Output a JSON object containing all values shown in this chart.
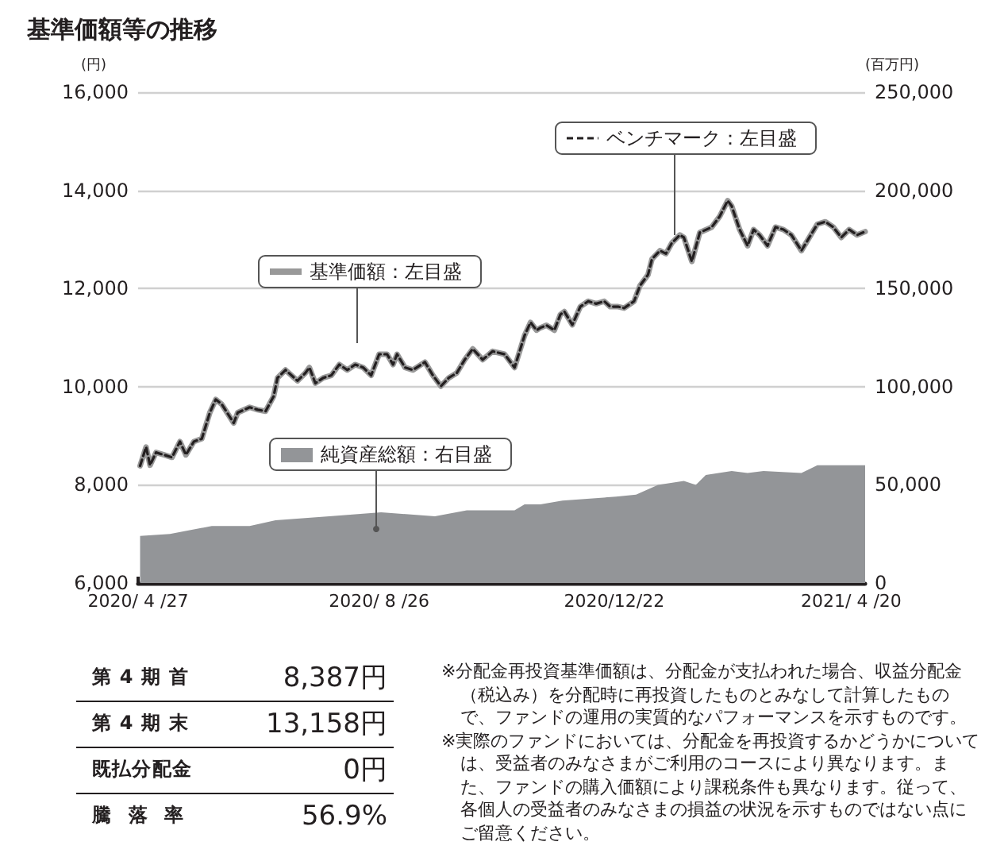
{
  "chart_data": [
    {
      "type": "line",
      "title": "基準価額等の推移",
      "ylabel": "(円)",
      "y2label": "(百万円)",
      "xlim": [
        "2020-04-27",
        "2021-04-27"
      ],
      "xticks": [
        {
          "value": "2020-04-27",
          "label": "2020/ 4 /27"
        },
        {
          "value": "2020-08-26",
          "label": "2020/ 8 /26"
        },
        {
          "value": "2020-12-22",
          "label": "2020/12/22"
        },
        {
          "value": "2021-04-20",
          "label": "2021/ 4 /20"
        }
      ],
      "ylim": [
        6000,
        16000
      ],
      "yticks": [
        {
          "value": 6000,
          "label": "6,000"
        },
        {
          "value": 8000,
          "label": "8,000"
        },
        {
          "value": 10000,
          "label": "10,000"
        },
        {
          "value": 12000,
          "label": "12,000"
        },
        {
          "value": 14000,
          "label": "14,000"
        },
        {
          "value": 16000,
          "label": "16,000"
        }
      ],
      "y2lim": [
        0,
        250000
      ],
      "y2ticks": [
        0,
        {
          "value": 50000,
          "label": "50,000"
        },
        {
          "value": 100000,
          "label": "100,000"
        },
        {
          "value": 150000,
          "label": "150,000"
        },
        {
          "value": 200000,
          "label": "200,000"
        },
        {
          "value": 250000,
          "label": "250,000"
        }
      ],
      "grid": "y",
      "legend": "top",
      "marker": "none",
      "series": [
        {
          "name": "純資産総額：右目盛",
          "type": "area",
          "axis": "y2",
          "color": "#939598",
          "x": [
            "2020-04-28",
            "2020-05-13",
            "2020-06-03",
            "2020-06-22",
            "2020-07-05",
            "2020-08-01",
            "2020-08-27",
            "2020-09-23",
            "2020-10-09",
            "2020-11-02",
            "2020-11-07",
            "2020-11-15",
            "2020-11-26",
            "2020-12-23",
            "2021-01-02",
            "2021-01-13",
            "2021-01-26",
            "2021-02-01",
            "2021-02-06",
            "2021-02-19",
            "2021-02-27",
            "2021-03-07",
            "2021-03-26",
            "2021-04-03",
            "2021-04-27"
          ],
          "values": [
            24000,
            25000,
            29000,
            29000,
            32000,
            34000,
            36000,
            34000,
            37000,
            37000,
            40000,
            40000,
            42000,
            44000,
            45000,
            50000,
            52000,
            50000,
            55000,
            57000,
            56000,
            57000,
            56000,
            60000,
            60000
          ]
        },
        {
          "name": "基準価額：左目盛",
          "type": "line",
          "color": "#999999",
          "line_style": "solid",
          "x": [
            "2020-04-28",
            "2020-05-01",
            "2020-05-03",
            "2020-05-06",
            "2020-05-10",
            "2020-05-14",
            "2020-05-18",
            "2020-05-21",
            "2020-05-25",
            "2020-05-29",
            "2020-06-02",
            "2020-06-05",
            "2020-06-08",
            "2020-06-14",
            "2020-06-16",
            "2020-06-22",
            "2020-06-26",
            "2020-06-30",
            "2020-07-04",
            "2020-07-06",
            "2020-07-10",
            "2020-07-16",
            "2020-07-20",
            "2020-07-22",
            "2020-07-25",
            "2020-07-29",
            "2020-08-02",
            "2020-08-06",
            "2020-08-10",
            "2020-08-14",
            "2020-08-18",
            "2020-08-22",
            "2020-08-26",
            "2020-08-30",
            "2020-09-02",
            "2020-09-04",
            "2020-09-08",
            "2020-09-12",
            "2020-09-18",
            "2020-09-22",
            "2020-09-26",
            "2020-09-30",
            "2020-10-04",
            "2020-10-08",
            "2020-10-12",
            "2020-10-17",
            "2020-10-22",
            "2020-10-28",
            "2020-11-02",
            "2020-11-07",
            "2020-11-10",
            "2020-11-13",
            "2020-11-15",
            "2020-11-18",
            "2020-11-22",
            "2020-11-25",
            "2020-11-27",
            "2020-12-01",
            "2020-12-05",
            "2020-12-09",
            "2020-12-13",
            "2020-12-17",
            "2020-12-20",
            "2020-12-24",
            "2020-12-27",
            "2021-01-01",
            "2021-01-04",
            "2021-01-08",
            "2021-01-10",
            "2021-01-14",
            "2021-01-17",
            "2021-01-20",
            "2021-01-24",
            "2021-01-26",
            "2021-01-30",
            "2021-02-03",
            "2021-02-09",
            "2021-02-13",
            "2021-02-17",
            "2021-02-19",
            "2021-02-23",
            "2021-02-27",
            "2021-03-02",
            "2021-03-05",
            "2021-03-09",
            "2021-03-13",
            "2021-03-17",
            "2021-03-21",
            "2021-03-26",
            "2021-03-30",
            "2021-04-03",
            "2021-04-07",
            "2021-04-11",
            "2021-04-15",
            "2021-04-19",
            "2021-04-23",
            "2021-04-27"
          ],
          "values": [
            8387,
            8770,
            8400,
            8660,
            8610,
            8560,
            8880,
            8610,
            8880,
            8940,
            9470,
            9740,
            9640,
            9260,
            9470,
            9580,
            9530,
            9500,
            9800,
            10180,
            10340,
            10120,
            10280,
            10390,
            10070,
            10180,
            10230,
            10450,
            10340,
            10450,
            10390,
            10230,
            10660,
            10660,
            10450,
            10660,
            10390,
            10340,
            10500,
            10230,
            10010,
            10180,
            10280,
            10550,
            10770,
            10550,
            10720,
            10660,
            10390,
            11040,
            11310,
            11150,
            11200,
            11250,
            11150,
            11470,
            11530,
            11260,
            11630,
            11740,
            11690,
            11740,
            11630,
            11630,
            11600,
            11740,
            12060,
            12280,
            12600,
            12770,
            12710,
            12930,
            13090,
            13040,
            12550,
            13140,
            13250,
            13470,
            13790,
            13680,
            13200,
            12870,
            13200,
            13090,
            12870,
            13250,
            13200,
            13090,
            12770,
            13040,
            13310,
            13360,
            13250,
            13040,
            13200,
            13090,
            13158
          ]
        },
        {
          "name": "ベンチマーク：左目盛",
          "type": "line",
          "color": "#231f20",
          "line_style": "dashed",
          "x": [
            "2020-04-28",
            "2020-05-01",
            "2020-05-03",
            "2020-05-06",
            "2020-05-10",
            "2020-05-14",
            "2020-05-18",
            "2020-05-21",
            "2020-05-25",
            "2020-05-29",
            "2020-06-02",
            "2020-06-05",
            "2020-06-08",
            "2020-06-14",
            "2020-06-16",
            "2020-06-22",
            "2020-06-26",
            "2020-06-30",
            "2020-07-04",
            "2020-07-06",
            "2020-07-10",
            "2020-07-16",
            "2020-07-20",
            "2020-07-22",
            "2020-07-25",
            "2020-07-29",
            "2020-08-02",
            "2020-08-06",
            "2020-08-10",
            "2020-08-14",
            "2020-08-18",
            "2020-08-22",
            "2020-08-26",
            "2020-08-30",
            "2020-09-02",
            "2020-09-04",
            "2020-09-08",
            "2020-09-12",
            "2020-09-18",
            "2020-09-22",
            "2020-09-26",
            "2020-09-30",
            "2020-10-04",
            "2020-10-08",
            "2020-10-12",
            "2020-10-17",
            "2020-10-22",
            "2020-10-28",
            "2020-11-02",
            "2020-11-07",
            "2020-11-10",
            "2020-11-13",
            "2020-11-15",
            "2020-11-18",
            "2020-11-22",
            "2020-11-25",
            "2020-11-27",
            "2020-12-01",
            "2020-12-05",
            "2020-12-09",
            "2020-12-13",
            "2020-12-17",
            "2020-12-20",
            "2020-12-24",
            "2020-12-27",
            "2021-01-01",
            "2021-01-04",
            "2021-01-08",
            "2021-01-10",
            "2021-01-14",
            "2021-01-17",
            "2021-01-20",
            "2021-01-24",
            "2021-01-26",
            "2021-01-30",
            "2021-02-03",
            "2021-02-09",
            "2021-02-13",
            "2021-02-17",
            "2021-02-19",
            "2021-02-23",
            "2021-02-27",
            "2021-03-02",
            "2021-03-05",
            "2021-03-09",
            "2021-03-13",
            "2021-03-17",
            "2021-03-21",
            "2021-03-26",
            "2021-03-30",
            "2021-04-03",
            "2021-04-07",
            "2021-04-11",
            "2021-04-15",
            "2021-04-19",
            "2021-04-23",
            "2021-04-27"
          ],
          "values": [
            8387,
            8770,
            8400,
            8660,
            8610,
            8560,
            8880,
            8610,
            8880,
            8940,
            9470,
            9740,
            9640,
            9260,
            9470,
            9580,
            9530,
            9500,
            9800,
            10180,
            10340,
            10120,
            10280,
            10390,
            10070,
            10180,
            10230,
            10450,
            10340,
            10450,
            10390,
            10230,
            10660,
            10660,
            10450,
            10660,
            10390,
            10340,
            10500,
            10230,
            10010,
            10180,
            10280,
            10550,
            10770,
            10550,
            10720,
            10660,
            10390,
            11040,
            11310,
            11150,
            11200,
            11250,
            11150,
            11470,
            11530,
            11260,
            11630,
            11740,
            11690,
            11740,
            11630,
            11630,
            11600,
            11740,
            12060,
            12280,
            12600,
            12770,
            12710,
            12930,
            13090,
            13040,
            12550,
            13140,
            13250,
            13470,
            13790,
            13680,
            13200,
            12870,
            13200,
            13090,
            12870,
            13250,
            13200,
            13090,
            12770,
            13040,
            13310,
            13360,
            13250,
            13040,
            13200,
            13090,
            13158
          ]
        }
      ]
    },
    {
      "type": "other",
      "categories": [
        "第4期首",
        "第4期末",
        "既払分配金",
        "騰落率"
      ],
      "value_labels": [
        "8,387円",
        "13,158円",
        "0円",
        "56.9%"
      ],
      "annotations": [
        "※分配金再投資基準価額は、分配金が支払われた場合、収益分配金（税込み）を分配時に再投資したものとみなして計算したもので、ファンドの運用の実質的なパフォーマンスを示すものです。",
        "※実際のファンドにおいては、分配金を再投資するかどうかについては、受益者のみなさまがご利用のコースにより異なります。また、ファンドの購入価額により課税条件も異なります。従って、各個人の受益者のみなさまの損益の状況を示すものではない点にご留意ください。"
      ]
    }
  ]
}
